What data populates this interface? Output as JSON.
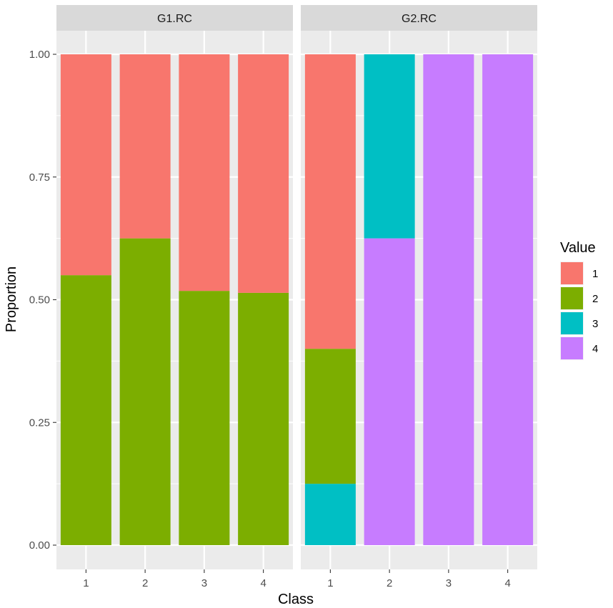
{
  "chart_data": {
    "type": "bar",
    "stacked": true,
    "xlabel": "Class",
    "ylabel": "Proportion",
    "ylim": [
      0,
      1
    ],
    "y_ticks": [
      "0.00",
      "0.25",
      "0.50",
      "0.75",
      "1.00"
    ],
    "categories": [
      "1",
      "2",
      "3",
      "4"
    ],
    "grid": true,
    "legend": {
      "title": "Value",
      "position": "right",
      "entries": [
        {
          "label": "1",
          "color": "#F8766D"
        },
        {
          "label": "2",
          "color": "#7CAE00"
        },
        {
          "label": "3",
          "color": "#00BFC4"
        },
        {
          "label": "4",
          "color": "#C77CFF"
        }
      ]
    },
    "panels": [
      {
        "strip": "G1.RC",
        "bars": [
          {
            "category": "1",
            "segments": [
              {
                "value": "2",
                "proportion": 0.55
              },
              {
                "value": "1",
                "proportion": 0.45
              }
            ]
          },
          {
            "category": "2",
            "segments": [
              {
                "value": "2",
                "proportion": 0.625
              },
              {
                "value": "1",
                "proportion": 0.375
              }
            ]
          },
          {
            "category": "3",
            "segments": [
              {
                "value": "2",
                "proportion": 0.518
              },
              {
                "value": "1",
                "proportion": 0.482
              }
            ]
          },
          {
            "category": "4",
            "segments": [
              {
                "value": "2",
                "proportion": 0.514
              },
              {
                "value": "1",
                "proportion": 0.486
              }
            ]
          }
        ]
      },
      {
        "strip": "G2.RC",
        "bars": [
          {
            "category": "1",
            "segments": [
              {
                "value": "3",
                "proportion": 0.125
              },
              {
                "value": "2",
                "proportion": 0.275
              },
              {
                "value": "1",
                "proportion": 0.6
              }
            ]
          },
          {
            "category": "2",
            "segments": [
              {
                "value": "4",
                "proportion": 0.625
              },
              {
                "value": "3",
                "proportion": 0.375
              }
            ]
          },
          {
            "category": "3",
            "segments": [
              {
                "value": "4",
                "proportion": 1.0
              }
            ]
          },
          {
            "category": "4",
            "segments": [
              {
                "value": "4",
                "proportion": 1.0
              }
            ]
          }
        ]
      }
    ]
  }
}
